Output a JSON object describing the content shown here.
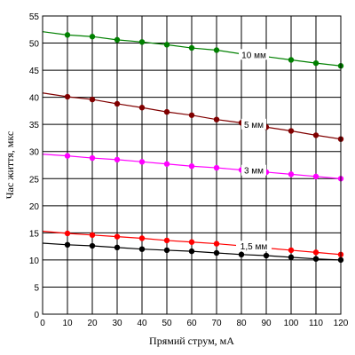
{
  "chart_data": {
    "type": "line",
    "xlabel": "Прямий струм, мА",
    "ylabel": "Час життя, мкс",
    "xlim": [
      0,
      120
    ],
    "ylim": [
      0,
      55
    ],
    "xticks": [
      0,
      10,
      20,
      30,
      40,
      50,
      60,
      70,
      80,
      90,
      100,
      110,
      120
    ],
    "yticks": [
      0,
      5,
      10,
      15,
      20,
      25,
      30,
      35,
      40,
      45,
      50,
      55
    ],
    "grid": true,
    "x": [
      10,
      20,
      30,
      40,
      50,
      60,
      70,
      80,
      90,
      100,
      110,
      120
    ],
    "series": [
      {
        "name": "10 мм",
        "color": "#008000",
        "line_start": 52.1,
        "values": [
          51.5,
          51.2,
          50.6,
          50.2,
          49.7,
          49.1,
          48.7,
          48.0,
          47.5,
          46.9,
          46.3,
          45.8
        ],
        "label_at_x": 85
      },
      {
        "name": "5 мм",
        "color": "#800000",
        "line_start": 40.8,
        "values": [
          40.1,
          39.6,
          38.8,
          38.1,
          37.3,
          36.7,
          35.9,
          35.3,
          34.5,
          33.8,
          33.0,
          32.3
        ],
        "label_at_x": 85
      },
      {
        "name": "3 мм",
        "color": "#ff00ff",
        "line_start": 29.5,
        "values": [
          29.2,
          28.8,
          28.5,
          28.1,
          27.7,
          27.3,
          27.0,
          26.6,
          26.2,
          25.8,
          25.4,
          25.0
        ],
        "label_at_x": 85
      },
      {
        "name": "1,5 мм",
        "color": "#ff0000",
        "line_start": 15.3,
        "values": [
          14.9,
          14.6,
          14.3,
          14.0,
          13.6,
          13.3,
          13.0,
          12.6,
          12.2,
          11.8,
          11.4,
          11.0
        ],
        "label_at_x": 85
      },
      {
        "name": "",
        "color": "#000000",
        "line_start": 13.1,
        "values": [
          12.8,
          12.6,
          12.3,
          12.0,
          11.8,
          11.6,
          11.3,
          11.0,
          10.8,
          10.5,
          10.2,
          10.0
        ]
      }
    ]
  }
}
